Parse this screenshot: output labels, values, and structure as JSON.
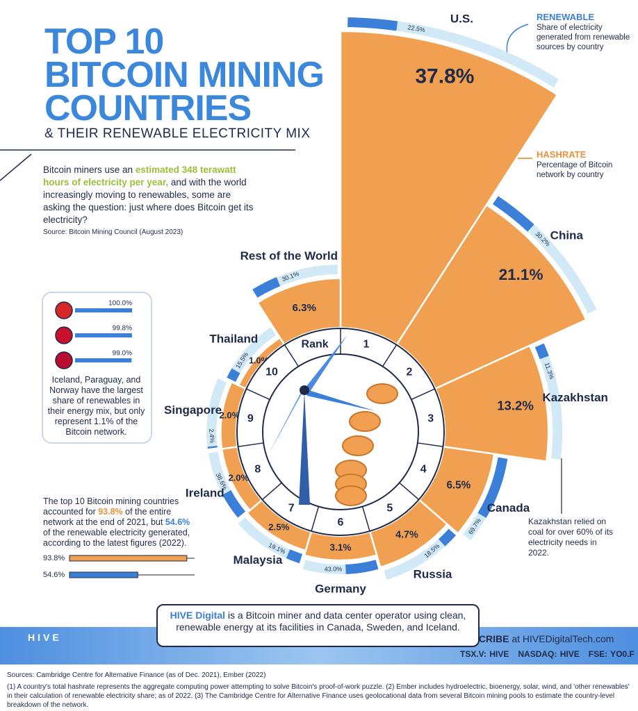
{
  "header": {
    "title_lines": [
      "TOP 10",
      "BITCOIN MINING",
      "COUNTRIES"
    ],
    "subtitle": "& THEIR RENEWABLE ELECTRICITY MIX"
  },
  "intro": {
    "parts": [
      "Bitcoin miners use an ",
      "estimated 348 terawatt hours of electricity per year,",
      " and with the world increasingly moving to renewables, some are asking the question: just where does Bitcoin get its electricity?"
    ],
    "source": "Source: Bitcoin Mining Council (August 2023)"
  },
  "chart_data": {
    "type": "radial-bar",
    "rank_label": "Rank",
    "categories": [
      "U.S.",
      "China",
      "Kazakhstan",
      "Canada",
      "Russia",
      "Germany",
      "Malaysia",
      "Ireland",
      "Singapore",
      "Thailand",
      "Rest of the World"
    ],
    "ranks": [
      1,
      2,
      3,
      4,
      5,
      6,
      7,
      8,
      9,
      10,
      null
    ],
    "series": [
      {
        "name": "HASHRATE",
        "description": "Percentage of Bitcoin network by country",
        "color": "#f0a050",
        "values": [
          37.8,
          21.1,
          13.2,
          6.5,
          4.7,
          3.1,
          2.5,
          2.0,
          2.0,
          1.0,
          6.3
        ],
        "value_labels": [
          "37.8%",
          "21.1%",
          "13.2%",
          "6.5%",
          "4.7%",
          "3.1%",
          "2.5%",
          "2.0%",
          "2.0%",
          "1.0%",
          "6.3%"
        ]
      },
      {
        "name": "RENEWABLE",
        "description": "Share of electricity generated from renewable sources by country",
        "color": "#3c7fd8",
        "axis": "y2",
        "values": [
          22.5,
          30.2,
          11.3,
          69.7,
          18.5,
          43.0,
          19.1,
          38.6,
          2.4,
          15.5,
          30.1
        ],
        "value_labels": [
          "22.5%",
          "30.2%",
          "11.3%",
          "69.7%",
          "18.5%",
          "43.0%",
          "19.1%",
          "38.6%",
          "2.4%",
          "15.5%",
          "30.1%"
        ]
      }
    ],
    "y2lim": [
      0,
      100
    ]
  },
  "leaders": {
    "values": [
      100.0,
      99.8,
      99.0
    ],
    "value_labels": [
      "100.0%",
      "99.8%",
      "99.0%"
    ],
    "xlim": [
      0,
      100
    ],
    "text": "Iceland, Paraguay, and Norway have the largest share of renewables in their energy mix, but only represent 1.1% of the Bitcoin network."
  },
  "top10": {
    "parts": [
      "The top 10 Bitcoin mining countries accounted for ",
      "93.8%",
      " of the entire network at the end of 2021, but ",
      "54.6%",
      " of the renewable electricity generated, according to the latest figures (2022)."
    ],
    "values": [
      93.8,
      54.6
    ],
    "value_labels": [
      "93.8%",
      "54.6%"
    ],
    "xlim": [
      0,
      100
    ]
  },
  "kazakhstan_note": "Kazakhstan relied on coal for over 60% of its electricity needs in 2022.",
  "hive": {
    "logo": "HIVE",
    "parts": [
      "HIVE Digital",
      " is a Bitcoin miner and data center operator using clean, renewable energy at its facilities in Canada, Sweden, and Iceland."
    ],
    "subscribe": [
      "SUBSCRIBE",
      " at HIVEDigitalTech.com"
    ],
    "tickers": [
      "TSX.V: HIVE",
      "NASDAQ: HIVE",
      "FSE: YO0.F"
    ]
  },
  "footer": {
    "sources": "Sources: Cambridge Centre for Alternative Finance (as of Dec. 2021), Ember (2022)",
    "notes": "(1) A country's total hashrate represents the aggregate computing power attempting to solve Bitcoin's proof-of-work puzzle.  (2) Ember includes hydroelectric, bioenergy, solar, wind, and 'other renewables' in their calculation of renewable electricity share; as of 2022.  (3) The Cambridge Centre for Alternative Finance uses geolocational data from several Bitcoin mining pools to estimate the country-level breakdown of the network."
  }
}
